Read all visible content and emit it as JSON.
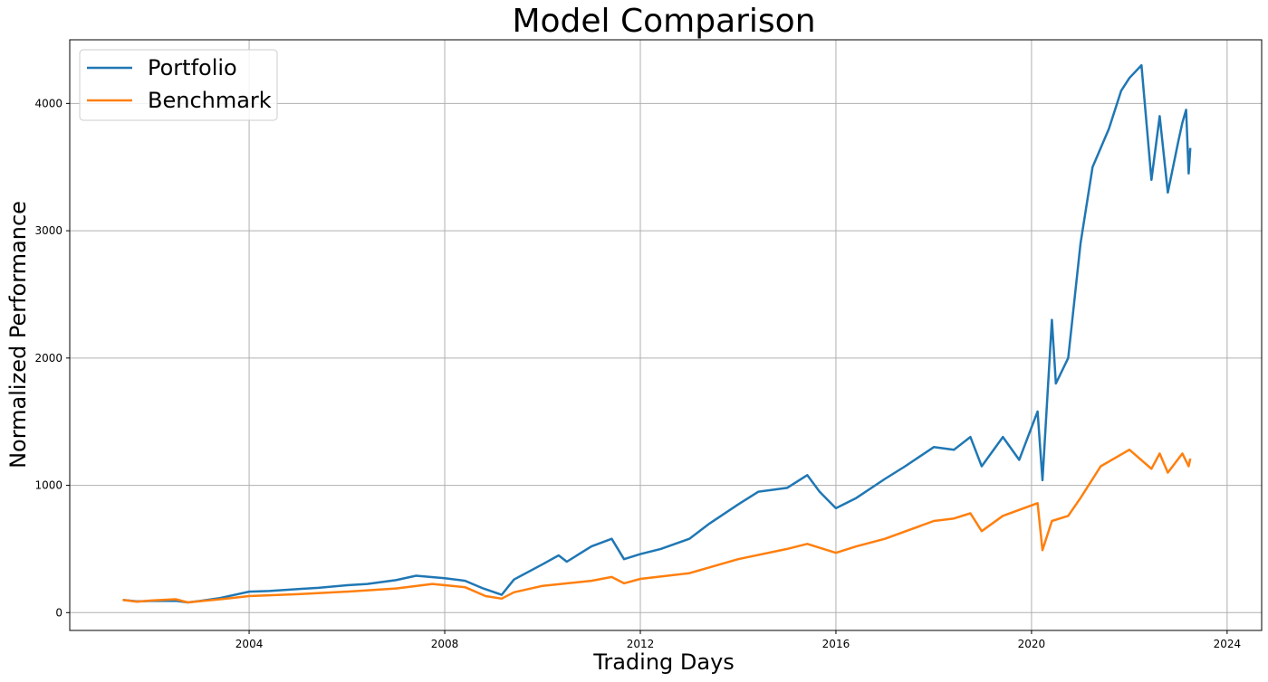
{
  "chart_data": {
    "type": "line",
    "title": "Model Comparison",
    "xlabel": "Trading Days",
    "ylabel": "Normalized Performance",
    "xlim": [
      "2000-05-01",
      "2024-09-15"
    ],
    "ylim": [
      -140,
      4500
    ],
    "x_ticks": [
      "2004",
      "2008",
      "2012",
      "2016",
      "2020",
      "2024"
    ],
    "y_ticks": [
      0,
      1000,
      2000,
      3000,
      4000
    ],
    "grid": true,
    "legend_position": "top-left",
    "series": [
      {
        "name": "Portfolio",
        "color": "#1f77b4",
        "points": [
          [
            "2001-06-01",
            100
          ],
          [
            "2001-09-15",
            88
          ],
          [
            "2002-01-01",
            92
          ],
          [
            "2002-07-01",
            93
          ],
          [
            "2002-10-01",
            80
          ],
          [
            "2003-01-01",
            92
          ],
          [
            "2003-06-01",
            115
          ],
          [
            "2004-01-01",
            165
          ],
          [
            "2004-06-01",
            170
          ],
          [
            "2005-01-01",
            185
          ],
          [
            "2005-06-01",
            195
          ],
          [
            "2006-01-01",
            215
          ],
          [
            "2006-06-01",
            225
          ],
          [
            "2007-01-01",
            255
          ],
          [
            "2007-06-01",
            290
          ],
          [
            "2008-01-01",
            270
          ],
          [
            "2008-06-01",
            250
          ],
          [
            "2008-10-15",
            190
          ],
          [
            "2009-03-01",
            140
          ],
          [
            "2009-06-01",
            260
          ],
          [
            "2010-01-01",
            380
          ],
          [
            "2010-05-01",
            450
          ],
          [
            "2010-07-01",
            400
          ],
          [
            "2011-01-01",
            520
          ],
          [
            "2011-06-01",
            580
          ],
          [
            "2011-09-01",
            420
          ],
          [
            "2012-01-01",
            460
          ],
          [
            "2012-06-01",
            500
          ],
          [
            "2013-01-01",
            580
          ],
          [
            "2013-06-01",
            700
          ],
          [
            "2014-01-01",
            850
          ],
          [
            "2014-06-01",
            950
          ],
          [
            "2015-01-01",
            980
          ],
          [
            "2015-06-01",
            1080
          ],
          [
            "2015-09-01",
            950
          ],
          [
            "2016-01-01",
            820
          ],
          [
            "2016-06-01",
            900
          ],
          [
            "2017-01-01",
            1050
          ],
          [
            "2017-06-01",
            1150
          ],
          [
            "2018-01-01",
            1300
          ],
          [
            "2018-06-01",
            1280
          ],
          [
            "2018-10-01",
            1380
          ],
          [
            "2018-12-25",
            1150
          ],
          [
            "2019-06-01",
            1380
          ],
          [
            "2019-10-01",
            1200
          ],
          [
            "2020-02-15",
            1580
          ],
          [
            "2020-03-23",
            1040
          ],
          [
            "2020-06-01",
            2300
          ],
          [
            "2020-07-01",
            1800
          ],
          [
            "2020-10-01",
            2000
          ],
          [
            "2021-01-01",
            2900
          ],
          [
            "2021-04-01",
            3500
          ],
          [
            "2021-08-01",
            3800
          ],
          [
            "2021-11-01",
            4100
          ],
          [
            "2022-01-01",
            4200
          ],
          [
            "2022-04-01",
            4300
          ],
          [
            "2022-06-15",
            3400
          ],
          [
            "2022-08-15",
            3900
          ],
          [
            "2022-10-15",
            3300
          ],
          [
            "2023-01-01",
            3700
          ],
          [
            "2023-02-01",
            3850
          ],
          [
            "2023-03-01",
            3950
          ],
          [
            "2023-03-20",
            3450
          ],
          [
            "2023-04-01",
            3650
          ]
        ]
      },
      {
        "name": "Benchmark",
        "color": "#ff7f0e",
        "points": [
          [
            "2001-06-01",
            100
          ],
          [
            "2001-09-15",
            85
          ],
          [
            "2002-01-01",
            95
          ],
          [
            "2002-07-01",
            105
          ],
          [
            "2002-10-01",
            80
          ],
          [
            "2003-01-01",
            90
          ],
          [
            "2003-06-01",
            105
          ],
          [
            "2004-01-01",
            130
          ],
          [
            "2005-01-01",
            145
          ],
          [
            "2006-01-01",
            165
          ],
          [
            "2007-01-01",
            190
          ],
          [
            "2007-10-01",
            225
          ],
          [
            "2008-06-01",
            200
          ],
          [
            "2008-11-01",
            130
          ],
          [
            "2009-03-01",
            110
          ],
          [
            "2009-06-01",
            160
          ],
          [
            "2010-01-01",
            210
          ],
          [
            "2011-01-01",
            250
          ],
          [
            "2011-06-01",
            280
          ],
          [
            "2011-09-01",
            230
          ],
          [
            "2012-01-01",
            265
          ],
          [
            "2013-01-01",
            310
          ],
          [
            "2014-01-01",
            420
          ],
          [
            "2015-01-01",
            500
          ],
          [
            "2015-06-01",
            540
          ],
          [
            "2016-01-01",
            470
          ],
          [
            "2016-06-01",
            520
          ],
          [
            "2017-01-01",
            580
          ],
          [
            "2018-01-01",
            720
          ],
          [
            "2018-06-01",
            740
          ],
          [
            "2018-10-01",
            780
          ],
          [
            "2018-12-25",
            640
          ],
          [
            "2019-06-01",
            760
          ],
          [
            "2020-02-15",
            860
          ],
          [
            "2020-03-23",
            490
          ],
          [
            "2020-06-01",
            720
          ],
          [
            "2020-10-01",
            760
          ],
          [
            "2021-01-01",
            900
          ],
          [
            "2021-06-01",
            1150
          ],
          [
            "2022-01-01",
            1280
          ],
          [
            "2022-06-15",
            1130
          ],
          [
            "2022-08-15",
            1250
          ],
          [
            "2022-10-15",
            1100
          ],
          [
            "2023-02-01",
            1250
          ],
          [
            "2023-03-20",
            1150
          ],
          [
            "2023-04-01",
            1210
          ]
        ]
      }
    ]
  }
}
